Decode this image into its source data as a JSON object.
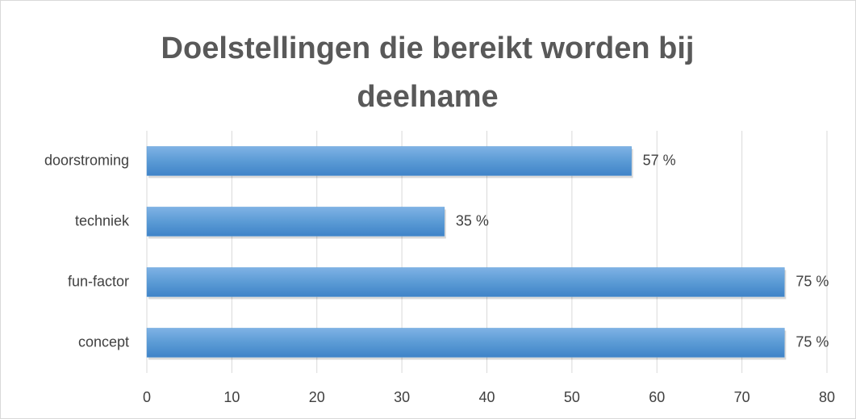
{
  "chart_data": {
    "type": "bar",
    "orientation": "horizontal",
    "title": "Doelstellingen die bereikt worden bij deelname",
    "categories": [
      "doorstroming",
      "techniek",
      "fun-factor",
      "concept"
    ],
    "values": [
      57,
      35,
      75,
      75
    ],
    "value_labels": [
      "57 %",
      "35 %",
      "75 %",
      "75 %"
    ],
    "color": "#5b9bd5",
    "xlim": [
      0,
      80
    ],
    "xticks": [
      0,
      10,
      20,
      30,
      40,
      50,
      60,
      70,
      80
    ],
    "grid": true
  }
}
